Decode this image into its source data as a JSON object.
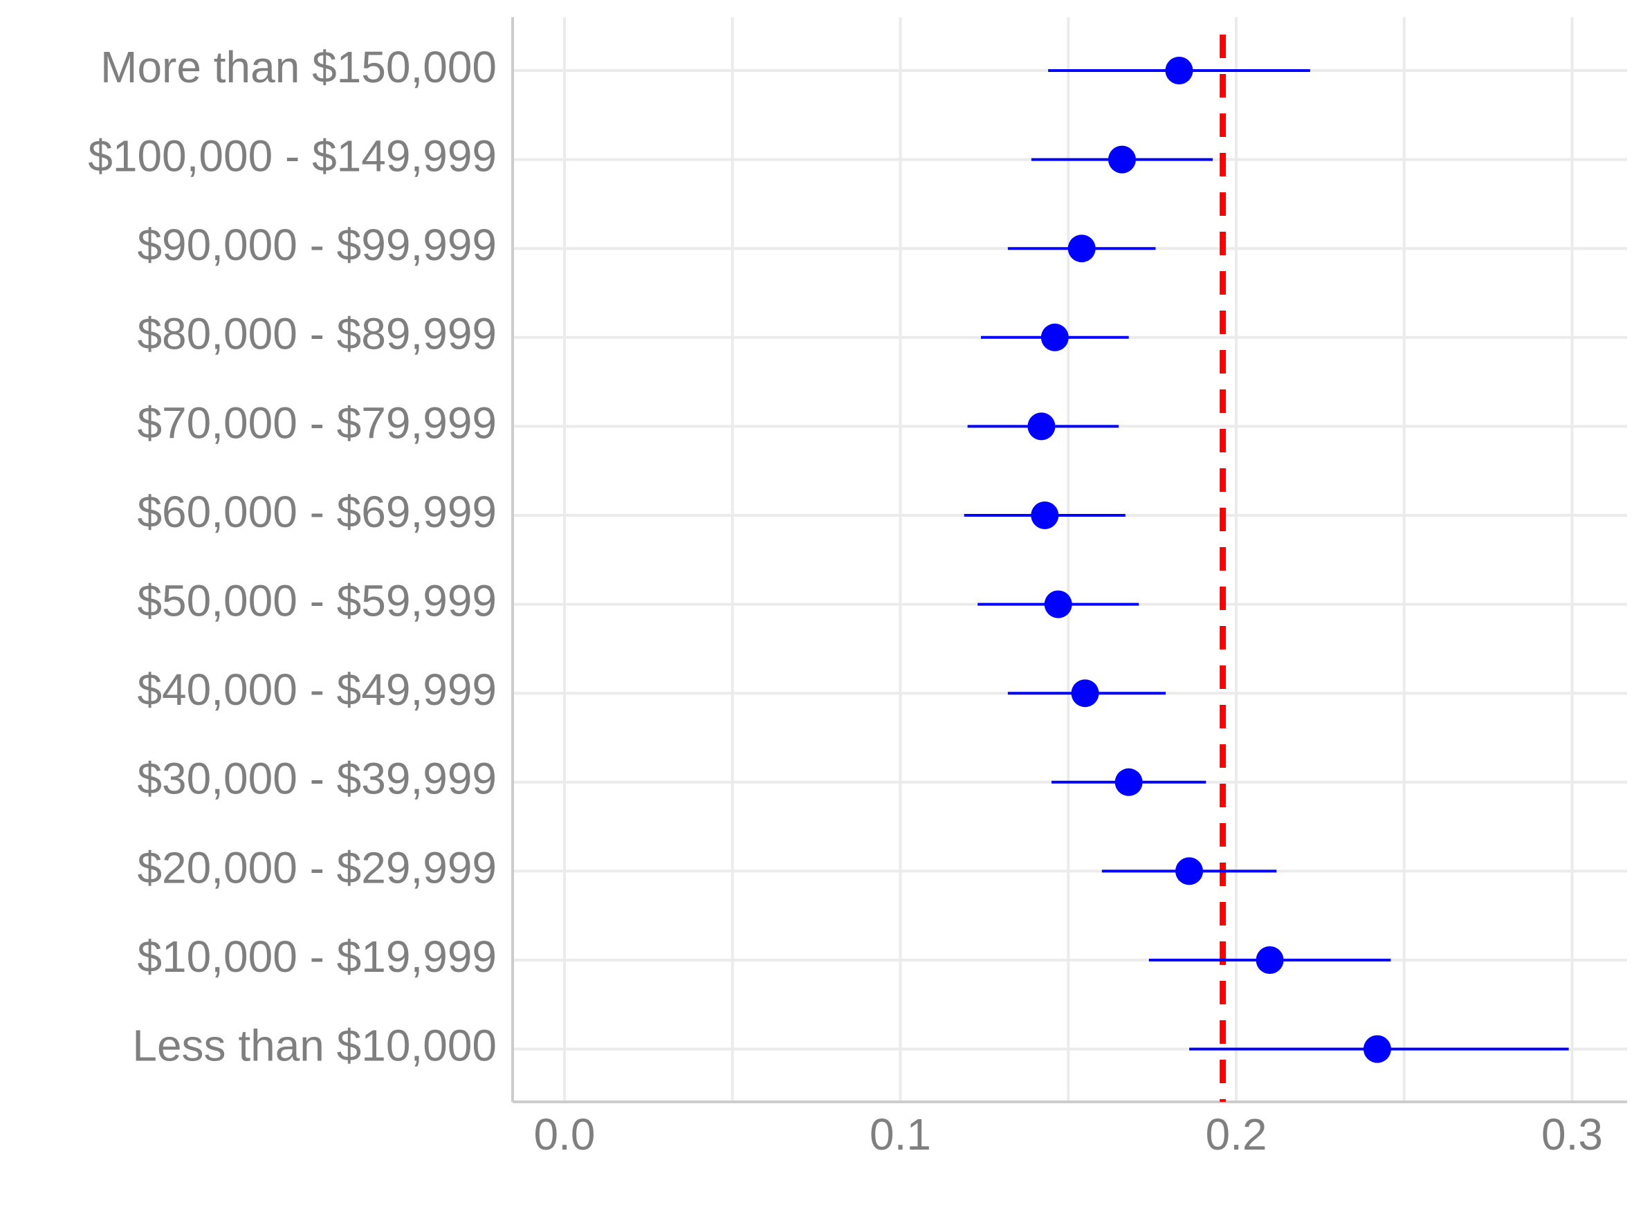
{
  "chart_data": {
    "type": "scatter",
    "title": "",
    "xlabel": "",
    "ylabel": "",
    "xlim": [
      -0.015,
      0.315
    ],
    "x_ticks": [
      "0.0",
      "0.1",
      "0.2",
      "0.3"
    ],
    "x_tick_values": [
      0.0,
      0.1,
      0.2,
      0.3
    ],
    "grid": true,
    "categories": [
      "More than $150,000",
      "$100,000 - $149,999",
      "$90,000 - $99,999",
      "$80,000 - $89,999",
      "$70,000 - $79,999",
      "$60,000 - $69,999",
      "$50,000 - $59,999",
      "$40,000 - $49,999",
      "$30,000 - $39,999",
      "$20,000 - $29,999",
      "$10,000 - $19,999",
      "Less than $10,000"
    ],
    "estimates": [
      0.183,
      0.166,
      0.154,
      0.146,
      0.142,
      0.143,
      0.147,
      0.155,
      0.168,
      0.186,
      0.21,
      0.242
    ],
    "ci_low": [
      0.144,
      0.139,
      0.132,
      0.124,
      0.12,
      0.119,
      0.123,
      0.132,
      0.145,
      0.16,
      0.174,
      0.186
    ],
    "ci_high": [
      0.222,
      0.193,
      0.176,
      0.168,
      0.165,
      0.167,
      0.171,
      0.179,
      0.191,
      0.212,
      0.246,
      0.299
    ],
    "reference_line": 0.196,
    "colors": {
      "points": "#0000ff",
      "error_bars": "#0000ff",
      "reference_line": "#ff0000",
      "grid": "#ebebeb",
      "axis": "#cccccc",
      "tick_text": "#7f7f7f"
    }
  }
}
